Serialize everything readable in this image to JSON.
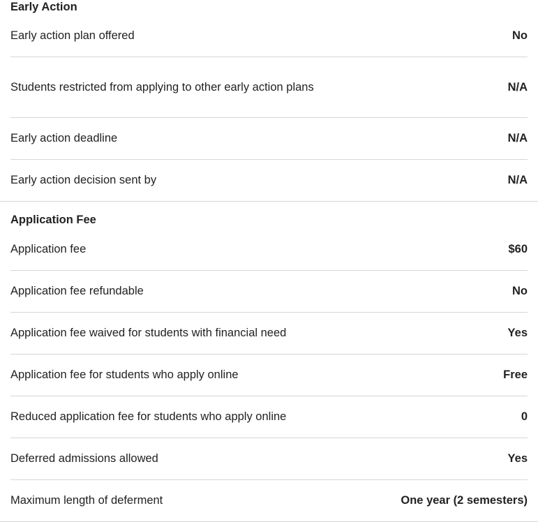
{
  "sections": [
    {
      "title": "Early Action",
      "rows": [
        {
          "label": "Early action plan offered",
          "value": "No"
        },
        {
          "label": "Students restricted from applying to other early action plans",
          "value": "N/A"
        },
        {
          "label": "Early action deadline",
          "value": "N/A"
        },
        {
          "label": "Early action decision sent by",
          "value": "N/A"
        }
      ]
    },
    {
      "title": "Application Fee",
      "rows": [
        {
          "label": "Application fee",
          "value": "$60"
        },
        {
          "label": "Application fee refundable",
          "value": "No"
        },
        {
          "label": "Application fee waived for students with financial need",
          "value": "Yes"
        },
        {
          "label": "Application fee for students who apply online",
          "value": "Free"
        },
        {
          "label": "Reduced application fee for students who apply online",
          "value": "0"
        },
        {
          "label": "Deferred admissions allowed",
          "value": "Yes"
        },
        {
          "label": "Maximum length of deferment",
          "value": "One year (2 semesters)"
        }
      ]
    }
  ]
}
